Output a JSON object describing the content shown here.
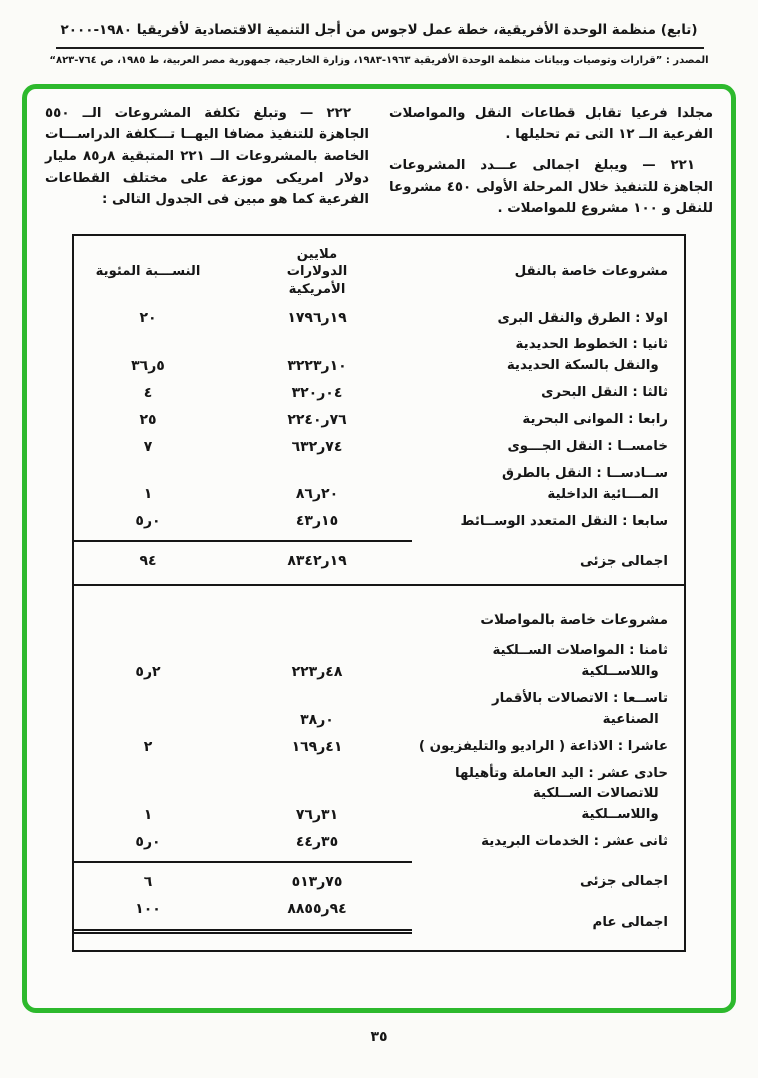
{
  "header": {
    "title": "(تابع) منظمة الوحدة الأفريقية، خطة عمل لاجوس من أجل التنمية الاقتصادية لأفريقيا ١٩٨٠-٢٠٠٠",
    "source": "المصدر : ”قرارات وتوصيات وبيانات منظمة الوحدة الأفريقية ١٩٦٣-١٩٨٣، وزارة الخارجية، جمهورية مصر العربية، ط ١٩٨٥، ص ٧٦٤-٨٢٣“"
  },
  "intro": {
    "right_column": [
      "مجلدا فرعيا تقابل قطاعات النقل والمواصلات الفرعية الــ ١٢ التى تم تحليلها .",
      "٢٢١ — ويبلغ اجمالى عـــدد المشروعات الجاهزة للتنفيذ خلال المرحلة الأولى ٤٥٠ مشروعا للنقل و ١٠٠ مشروع للمواصلات ."
    ],
    "left_column": [
      "٢٢٢ — وتبلغ تكلفة المشروعات الــ ٥٥٠ الجاهزة للتنفيذ مضافا اليهــا تـــكلفة الدراســـات الخاصة بالمشروعات الــ ٢٢١ المتبقية ٨ر٨٥ مليار دولار امريكى موزعة على مختلف القطاعات الفرعية كما هو مبين فى الجدول التالى :"
    ]
  },
  "table": {
    "headers": {
      "section1": "مشروعات خاصة بالنقل",
      "unit": "ملايين\nالدولارات\nالأمريكية",
      "percent": "النســـبة المئوية"
    },
    "rows": [
      {
        "kind": "data",
        "label": "اولا : الطرق والنقل البرى",
        "value": "١٧٩٦ر١٩",
        "pct": "٢٠"
      },
      {
        "kind": "data",
        "label": "ثانيا : الخطوط الحديدية\n  والنقل بالسكة الحديدية",
        "value": "٣٢٢٣ر١٠",
        "pct": "٣٦ر٥"
      },
      {
        "kind": "data",
        "label": "ثالثا : النقل البحرى",
        "value": "٣٢٠ر٠٤",
        "pct": "٤"
      },
      {
        "kind": "data",
        "label": "رابعا : الموانى البحرية",
        "value": "٢٢٤٠ر٧٦",
        "pct": "٢٥"
      },
      {
        "kind": "data",
        "label": "خامســا : النقل الجـــوى",
        "value": "٦٣٢ر٧٤",
        "pct": "٧"
      },
      {
        "kind": "data",
        "label": "ســادســا : النقل بالطرق\n  المـــائية الداخلية",
        "value": "٨٦ر٢٠",
        "pct": "١"
      },
      {
        "kind": "data",
        "label": "سابعا : النقل المتعدد الوســائط",
        "value": "٤٣ر١٥",
        "pct": "٥ر٠"
      },
      {
        "kind": "subtotal",
        "label": "اجمالى جزئى",
        "value": "٨٣٤٢ر١٩",
        "pct": "٩٤"
      },
      {
        "kind": "section",
        "label": "مشروعات خاصة بالمواصلات",
        "value": "",
        "pct": ""
      },
      {
        "kind": "data",
        "label": "ثامنا : المواصلات الســلكية\n  واللاســلكية",
        "value": "٢٢٣ر٤٨",
        "pct": "٥ر٢"
      },
      {
        "kind": "data",
        "label": "تاســعا : الاتصالات بالأقمار\n  الصناعية",
        "value": "٣٨ر٠",
        "pct": ""
      },
      {
        "kind": "data",
        "label": "عاشرا : الاذاعة ( الراديو والتليفزيون )",
        "value": "١٦٩ر٤١",
        "pct": "٢"
      },
      {
        "kind": "data",
        "label": "حادى عشر : اليد العاملة وتأهيلها\n  للاتصالات الســلكية\n  واللاســلكية",
        "value": "٧٦ر٣١",
        "pct": "١"
      },
      {
        "kind": "data",
        "label": "ثانى عشر : الخدمات البريدية",
        "value": "٤٤ر٣٥",
        "pct": "٥ر٠"
      },
      {
        "kind": "subtotal",
        "label": "اجمالى جزئى",
        "value": "٥١٣ر٧٥",
        "pct": "٦"
      },
      {
        "kind": "grand",
        "label": "اجمالى عام",
        "value": "٨٨٥٥ر٩٤",
        "pct": "١٠٠"
      }
    ]
  },
  "page": {
    "number": "٣٥"
  },
  "colors": {
    "frame_green": "#2db92d",
    "ink": "#161616"
  }
}
